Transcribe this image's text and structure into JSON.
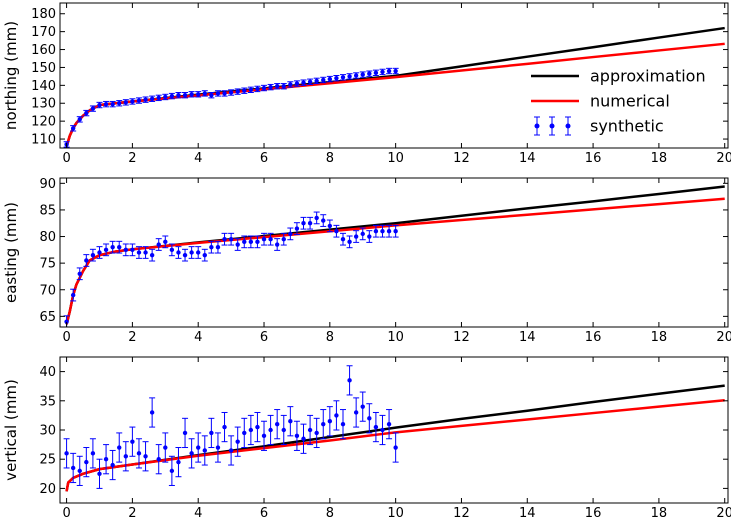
{
  "figure": {
    "legend": {
      "entries": [
        {
          "label": "approximation",
          "color": "#000000",
          "kind": "line"
        },
        {
          "label": "numerical",
          "color": "#ff0000",
          "kind": "line"
        },
        {
          "label": "synthetic",
          "color": "#0000ff",
          "kind": "errorbar"
        }
      ],
      "placement": "right, in northing panel"
    }
  },
  "chart_data": [
    {
      "type": "line",
      "ylabel": "northing (mm)",
      "xlim": [
        -0.2,
        20.1
      ],
      "ylim": [
        105,
        186
      ],
      "xticks": [
        "0",
        "2",
        "4",
        "6",
        "8",
        "10",
        "12",
        "14",
        "16",
        "18",
        "20"
      ],
      "yticks": [
        "110",
        "120",
        "130",
        "140",
        "150",
        "160",
        "170",
        "180"
      ],
      "grid": false,
      "series": [
        {
          "name": "approximation",
          "color": "#000000",
          "x": [
            0,
            0.1,
            0.2,
            0.3,
            0.5,
            0.7,
            1.0,
            1.5,
            2,
            4,
            6,
            8,
            10,
            12,
            14,
            16,
            18,
            20
          ],
          "y": [
            106,
            112,
            116,
            119,
            123,
            126,
            129,
            130,
            131,
            134.8,
            138.3,
            141.8,
            145.3,
            150.6,
            156,
            161.3,
            166.7,
            172
          ]
        },
        {
          "name": "numerical",
          "color": "#ff0000",
          "x": [
            0,
            0.1,
            0.2,
            0.3,
            0.5,
            0.7,
            1.0,
            1.5,
            2,
            4,
            6,
            8,
            10,
            12,
            14,
            16,
            18,
            20
          ],
          "y": [
            106,
            112,
            116,
            119,
            123,
            126,
            129,
            130,
            131,
            134.4,
            137.8,
            141.2,
            144.6,
            148.3,
            152,
            155.8,
            159.5,
            163.2
          ]
        },
        {
          "name": "synthetic",
          "color": "#0000ff",
          "kind": "errorbar",
          "yerr": 1.5,
          "x": [
            0,
            0.2,
            0.4,
            0.6,
            0.8,
            1.0,
            1.2,
            1.4,
            1.6,
            1.8,
            2.0,
            2.2,
            2.4,
            2.6,
            2.8,
            3.0,
            3.2,
            3.4,
            3.6,
            3.8,
            4.0,
            4.2,
            4.4,
            4.6,
            4.8,
            5.0,
            5.2,
            5.4,
            5.6,
            5.8,
            6.0,
            6.2,
            6.4,
            6.6,
            6.8,
            7.0,
            7.2,
            7.4,
            7.6,
            7.8,
            8.0,
            8.2,
            8.4,
            8.6,
            8.8,
            9.0,
            9.2,
            9.4,
            9.6,
            9.8,
            10.0
          ],
          "y": [
            107,
            116,
            121,
            124.5,
            127,
            129,
            129.5,
            129.5,
            130,
            130.5,
            131,
            131.5,
            132,
            132.5,
            133,
            133.5,
            134,
            134.5,
            134.5,
            135,
            135,
            135.5,
            134.5,
            135.5,
            135.5,
            136,
            136.5,
            137,
            137.5,
            138,
            138.5,
            139,
            139.5,
            139.5,
            140.5,
            141,
            141.5,
            142,
            142.5,
            143,
            143.5,
            144,
            144.5,
            145,
            145.5,
            146,
            146.5,
            147,
            147.5,
            148,
            148
          ]
        }
      ]
    },
    {
      "type": "line",
      "ylabel": "easting (mm)",
      "xlim": [
        -0.2,
        20.1
      ],
      "ylim": [
        63,
        91
      ],
      "xticks": [
        "0",
        "2",
        "4",
        "6",
        "8",
        "10",
        "12",
        "14",
        "16",
        "18",
        "20"
      ],
      "yticks": [
        "65",
        "70",
        "75",
        "80",
        "85",
        "90"
      ],
      "grid": false,
      "series": [
        {
          "name": "approximation",
          "color": "#000000",
          "x": [
            0,
            0.1,
            0.2,
            0.3,
            0.5,
            0.7,
            1.0,
            1.5,
            2,
            4,
            6,
            8,
            10,
            12,
            14,
            16,
            18,
            20
          ],
          "y": [
            63.5,
            66,
            69,
            71,
            73.5,
            75.5,
            76.5,
            77.2,
            77.6,
            78.9,
            80.1,
            81.3,
            82.5,
            83.9,
            85.3,
            86.6,
            88,
            89.4
          ]
        },
        {
          "name": "numerical",
          "color": "#ff0000",
          "x": [
            0,
            0.1,
            0.2,
            0.3,
            0.5,
            0.7,
            1.0,
            1.5,
            2,
            4,
            6,
            8,
            10,
            12,
            14,
            16,
            18,
            20
          ],
          "y": [
            63.5,
            66,
            69,
            71,
            73.5,
            75.5,
            76.5,
            77.2,
            77.6,
            78.8,
            79.9,
            81,
            82.1,
            83.1,
            84.1,
            85.1,
            86.1,
            87.1
          ]
        },
        {
          "name": "synthetic",
          "color": "#0000ff",
          "kind": "errorbar",
          "yerr": 1.1,
          "x": [
            0,
            0.2,
            0.4,
            0.6,
            0.8,
            1.0,
            1.2,
            1.4,
            1.6,
            1.8,
            2.0,
            2.2,
            2.4,
            2.6,
            2.8,
            3.0,
            3.2,
            3.4,
            3.6,
            3.8,
            4.0,
            4.2,
            4.4,
            4.6,
            4.8,
            5.0,
            5.2,
            5.4,
            5.6,
            5.8,
            6.0,
            6.2,
            6.4,
            6.6,
            6.8,
            7.0,
            7.2,
            7.4,
            7.6,
            7.8,
            8.0,
            8.2,
            8.4,
            8.6,
            8.8,
            9.0,
            9.2,
            9.4,
            9.6,
            9.8,
            10.0
          ],
          "y": [
            64,
            69,
            73,
            75.5,
            76.5,
            77,
            77.5,
            78,
            78,
            77.5,
            77.5,
            77,
            77,
            76.5,
            78.5,
            79,
            77.5,
            77,
            76.5,
            77,
            77,
            76.5,
            78,
            78,
            79.5,
            79.5,
            78.5,
            79,
            79,
            79,
            79.5,
            79.5,
            78.5,
            79.5,
            80.5,
            81.5,
            82.5,
            82.5,
            83.5,
            83,
            82,
            81,
            79.5,
            79,
            80,
            80.5,
            80,
            81,
            81,
            81,
            81
          ]
        }
      ]
    },
    {
      "type": "line",
      "ylabel": "vertical (mm)",
      "xlim": [
        -0.2,
        20.1
      ],
      "ylim": [
        17.5,
        42.5
      ],
      "xticks": [
        "0",
        "2",
        "4",
        "6",
        "8",
        "10",
        "12",
        "14",
        "16",
        "18",
        "20"
      ],
      "yticks": [
        "20",
        "25",
        "30",
        "35",
        "40"
      ],
      "grid": false,
      "series": [
        {
          "name": "approximation",
          "color": "#000000",
          "x": [
            0,
            0.05,
            0.2,
            0.5,
            1.0,
            2,
            4,
            6,
            8,
            10,
            12,
            14,
            16,
            18,
            20
          ],
          "y": [
            19.5,
            21,
            21.8,
            22.5,
            23.3,
            24.1,
            25.7,
            27.2,
            28.8,
            30.4,
            31.9,
            33.3,
            34.8,
            36.2,
            37.6
          ]
        },
        {
          "name": "numerical",
          "color": "#ff0000",
          "x": [
            0,
            0.05,
            0.2,
            0.5,
            1.0,
            2,
            4,
            6,
            8,
            10,
            12,
            14,
            16,
            18,
            20
          ],
          "y": [
            19.5,
            21,
            21.8,
            22.5,
            23.3,
            24.1,
            25.6,
            26.9,
            28.2,
            29.6,
            30.7,
            31.8,
            32.9,
            34,
            35.1
          ]
        },
        {
          "name": "synthetic",
          "color": "#0000ff",
          "kind": "errorbar",
          "yerr": 2.5,
          "x": [
            0,
            0.2,
            0.4,
            0.6,
            0.8,
            1.0,
            1.2,
            1.4,
            1.6,
            1.8,
            2.0,
            2.2,
            2.4,
            2.6,
            2.8,
            3.0,
            3.2,
            3.4,
            3.6,
            3.8,
            4.0,
            4.2,
            4.4,
            4.6,
            4.8,
            5.0,
            5.2,
            5.4,
            5.6,
            5.8,
            6.0,
            6.2,
            6.4,
            6.6,
            6.8,
            7.0,
            7.2,
            7.4,
            7.6,
            7.8,
            8.0,
            8.2,
            8.4,
            8.6,
            8.8,
            9.0,
            9.2,
            9.4,
            9.6,
            9.8,
            10.0
          ],
          "y": [
            26,
            23.5,
            23,
            24.5,
            26,
            22.5,
            25,
            24,
            27,
            25.5,
            28,
            26,
            25.5,
            33,
            25,
            27,
            23,
            24.5,
            29.5,
            26,
            27,
            26.5,
            29.5,
            27,
            30.5,
            26.5,
            28,
            29.5,
            30,
            30.5,
            29,
            30,
            31,
            30,
            31.5,
            29,
            28.5,
            30,
            29.5,
            31,
            31.5,
            32.5,
            31,
            38.5,
            33,
            34,
            32,
            30.5,
            30,
            31,
            27
          ]
        }
      ]
    }
  ]
}
